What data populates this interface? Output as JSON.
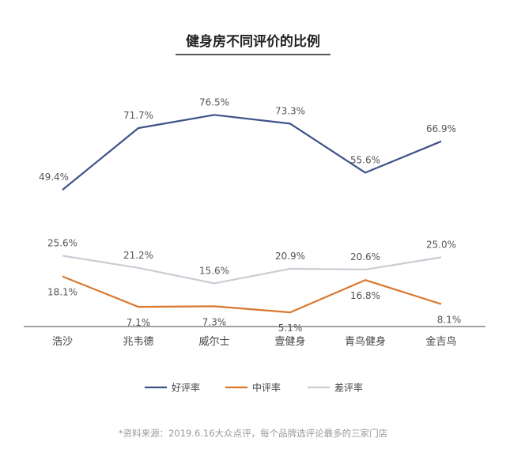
{
  "chart_data": {
    "type": "line",
    "title": "健身房不同评价的比例",
    "categories": [
      "浩沙",
      "兆韦德",
      "威尔士",
      "壹健身",
      "青鸟健身",
      "金吉鸟"
    ],
    "ylim": [
      0,
      80
    ],
    "grid": false,
    "legend_position": "bottom",
    "series": [
      {
        "name": "好评率",
        "color": "#3f5288",
        "values": [
          49.4,
          71.7,
          76.5,
          73.3,
          55.6,
          66.9
        ],
        "labels": [
          "49.4%",
          "71.7%",
          "76.5%",
          "73.3%",
          "55.6%",
          "66.9%"
        ]
      },
      {
        "name": "中评率",
        "color": "#d9782f",
        "values": [
          18.1,
          7.1,
          7.3,
          5.1,
          16.8,
          8.1
        ],
        "labels": [
          "18.1%",
          "7.1%",
          "7.3%",
          "5.1%",
          "16.8%",
          "8.1%"
        ]
      },
      {
        "name": "差评率",
        "color": "#cdcbd4",
        "values": [
          25.6,
          21.2,
          15.6,
          20.9,
          20.6,
          25.0
        ],
        "labels": [
          "25.6%",
          "21.2%",
          "15.6%",
          "20.9%",
          "20.6%",
          "25.0%"
        ]
      }
    ],
    "annotations": [
      "*资料来源：2019.6.16大众点评，每个品牌选评论最多的三家门店"
    ]
  }
}
